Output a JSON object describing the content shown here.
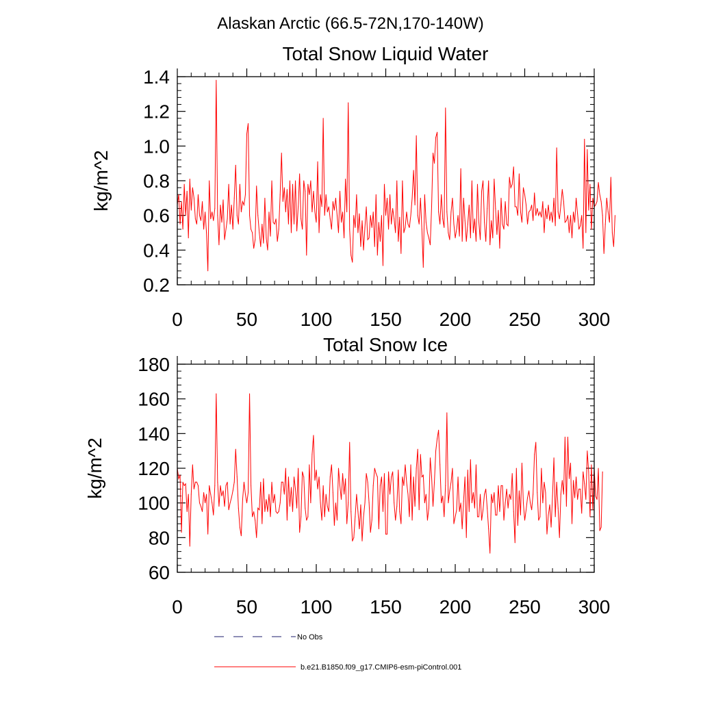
{
  "figure": {
    "title": "Alaskan Arctic (66.5-72N,170-140W)"
  },
  "colors": {
    "background": "#ffffff",
    "axis": "#000000",
    "model_line": "#ff0000",
    "obs_line": "#4b4b8a"
  },
  "legend": {
    "obs_label": "No Obs",
    "model_label": "b.e21.B1850.f09_g17.CMIP6-esm-piControl.001"
  },
  "chart_data": [
    {
      "type": "line",
      "title": "Total Snow Liquid Water",
      "xlabel": "",
      "ylabel": "kg/m^2",
      "xlim": [
        0,
        300
      ],
      "ylim": [
        0.2,
        1.4
      ],
      "xticks": [
        0,
        50,
        100,
        150,
        200,
        250,
        300
      ],
      "xtick_labels": [
        "0",
        "50",
        "100",
        "150",
        "200",
        "250",
        "300"
      ],
      "yticks": [
        0.2,
        0.4,
        0.6,
        0.8,
        1.0,
        1.2,
        1.4
      ],
      "ytick_labels": [
        "0.2",
        "0.4",
        "0.6",
        "0.8",
        "1.0",
        "1.2",
        "1.4"
      ],
      "series": [
        {
          "name": "b.e21.B1850.f09_g17.CMIP6-esm-piControl.001",
          "x_start": 0,
          "x_step": 1,
          "values": [
            0.66,
            0.72,
            0.55,
            0.68,
            0.52,
            0.78,
            0.6,
            0.74,
            0.47,
            0.81,
            0.63,
            0.76,
            0.7,
            0.58,
            0.55,
            0.72,
            0.6,
            0.57,
            0.68,
            0.52,
            0.62,
            0.5,
            0.28,
            0.8,
            0.58,
            0.62,
            0.57,
            0.64,
            1.38,
            0.6,
            0.43,
            0.66,
            0.56,
            0.69,
            0.46,
            0.52,
            0.58,
            0.78,
            0.55,
            0.66,
            0.52,
            0.7,
            0.89,
            0.6,
            0.55,
            0.78,
            0.62,
            0.68,
            0.66,
            0.72,
            1.07,
            1.13,
            0.6,
            0.52,
            0.5,
            0.41,
            0.46,
            0.77,
            0.6,
            0.5,
            0.42,
            0.55,
            0.44,
            0.7,
            0.47,
            0.4,
            0.62,
            0.48,
            0.8,
            0.56,
            0.55,
            0.58,
            0.45,
            0.52,
            0.72,
            0.96,
            0.68,
            0.76,
            0.62,
            0.75,
            0.55,
            0.8,
            0.5,
            0.78,
            0.55,
            0.8,
            0.51,
            0.65,
            0.84,
            0.58,
            0.52,
            0.8,
            0.74,
            0.37,
            0.78,
            0.72,
            0.8,
            0.62,
            0.74,
            0.62,
            0.56,
            0.91,
            0.5,
            0.72,
            0.65,
            1.16,
            0.6,
            0.72,
            0.62,
            0.65,
            0.58,
            0.52,
            0.68,
            0.63,
            0.7,
            0.6,
            0.5,
            0.74,
            0.56,
            0.62,
            0.47,
            0.81,
            0.62,
            1.25,
            0.52,
            0.37,
            0.33,
            0.6,
            0.53,
            0.72,
            0.5,
            0.61,
            0.42,
            0.57,
            0.4,
            0.53,
            0.65,
            0.46,
            0.47,
            0.6,
            0.53,
            0.62,
            0.42,
            0.72,
            0.37,
            0.56,
            0.45,
            0.6,
            0.31,
            0.78,
            0.6,
            0.7,
            0.52,
            0.72,
            0.55,
            0.64,
            0.58,
            0.5,
            0.8,
            0.45,
            0.59,
            0.38,
            0.8,
            0.5,
            0.53,
            0.62,
            0.55,
            0.53,
            0.6,
            0.7,
            0.86,
            0.66,
            1.06,
            0.6,
            0.55,
            0.7,
            0.52,
            0.3,
            0.72,
            0.56,
            0.5,
            0.47,
            0.43,
            0.65,
            0.96,
            0.9,
            1.05,
            1.08,
            0.62,
            0.55,
            0.72,
            0.58,
            0.53,
            1.22,
            0.62,
            0.5,
            0.46,
            0.62,
            0.7,
            0.55,
            0.47,
            0.52,
            0.6,
            0.48,
            0.87,
            0.45,
            0.7,
            0.57,
            0.45,
            0.55,
            0.66,
            0.47,
            0.8,
            0.5,
            0.58,
            0.45,
            0.78,
            0.56,
            0.46,
            0.74,
            0.8,
            0.56,
            0.45,
            0.64,
            0.8,
            0.43,
            0.57,
            0.47,
            0.81,
            0.64,
            0.49,
            0.63,
            0.41,
            0.7,
            0.55,
            0.52,
            0.68,
            0.55,
            0.54,
            0.82,
            0.76,
            0.78,
            0.88,
            0.65,
            0.65,
            0.6,
            0.84,
            0.62,
            0.56,
            0.76,
            0.72,
            0.66,
            0.55,
            0.62,
            0.63,
            0.66,
            0.57,
            0.73,
            0.6,
            0.64,
            0.6,
            0.62,
            0.59,
            0.68,
            0.5,
            0.64,
            0.58,
            0.66,
            0.57,
            0.62,
            0.56,
            0.7,
            0.54,
            0.99,
            0.62,
            0.58,
            0.66,
            0.75,
            0.68,
            0.56,
            0.57,
            0.6,
            0.5,
            0.6,
            0.47,
            0.62,
            0.56,
            0.7,
            0.61,
            0.52,
            0.54,
            0.6,
            0.41,
            1.04,
            0.5,
            0.98,
            0.63,
            0.78,
            0.52,
            0.7,
            0.65,
            0.66,
            0.68,
            0.79,
            0.72,
            0.68,
            0.6,
            0.38,
            0.55,
            0.7,
            0.62,
            0.56,
            0.82,
            0.5,
            0.42,
            0.6
          ]
        }
      ]
    },
    {
      "type": "line",
      "title": "Total Snow Ice",
      "xlabel": "",
      "ylabel": "kg/m^2",
      "xlim": [
        0,
        300
      ],
      "ylim": [
        60,
        180
      ],
      "xticks": [
        0,
        50,
        100,
        150,
        200,
        250,
        300
      ],
      "xtick_labels": [
        "0",
        "50",
        "100",
        "150",
        "200",
        "250",
        "300"
      ],
      "yticks": [
        60,
        80,
        100,
        120,
        140,
        160,
        180
      ],
      "ytick_labels": [
        "60",
        "80",
        "100",
        "120",
        "140",
        "160",
        "180"
      ],
      "series": [
        {
          "name": "b.e21.B1850.f09_g17.CMIP6-esm-piControl.001",
          "x_start": 0,
          "x_step": 1,
          "values": [
            120,
            114,
            116,
            83,
            112,
            110,
            111,
            95,
            105,
            75,
            105,
            122,
            108,
            112,
            112,
            110,
            100,
            98,
            95,
            106,
            100,
            105,
            82,
            110,
            105,
            100,
            93,
            110,
            163,
            112,
            98,
            110,
            104,
            107,
            98,
            110,
            112,
            96,
            100,
            103,
            107,
            112,
            131,
            115,
            97,
            86,
            81,
            102,
            112,
            105,
            100,
            106,
            163,
            110,
            92,
            95,
            90,
            80,
            97,
            96,
            112,
            88,
            114,
            95,
            102,
            95,
            105,
            92,
            112,
            100,
            105,
            95,
            94,
            95,
            100,
            112,
            112,
            105,
            120,
            90,
            115,
            98,
            109,
            95,
            115,
            108,
            97,
            120,
            83,
            92,
            118,
            115,
            97,
            90,
            92,
            122,
            100,
            128,
            139,
            113,
            119,
            108,
            115,
            100,
            90,
            110,
            92,
            105,
            98,
            95,
            115,
            122,
            106,
            87,
            100,
            90,
            120,
            110,
            102,
            117,
            105,
            114,
            88,
            100,
            135,
            95,
            78,
            80,
            92,
            105,
            95,
            85,
            99,
            78,
            92,
            100,
            117,
            112,
            100,
            83,
            90,
            110,
            120,
            117,
            115,
            85,
            110,
            115,
            95,
            117,
            82,
            82,
            118,
            105,
            115,
            118,
            100,
            90,
            98,
            119,
            95,
            88,
            115,
            110,
            122,
            112,
            105,
            92,
            122,
            90,
            115,
            98,
            120,
            131,
            96,
            128,
            115,
            116,
            100,
            105,
            90,
            97,
            126,
            115,
            98,
            112,
            130,
            137,
            142,
            122,
            100,
            104,
            92,
            110,
            152,
            100,
            107,
            112,
            120,
            88,
            92,
            96,
            115,
            95,
            100,
            85,
            101,
            115,
            80,
            119,
            95,
            125,
            100,
            106,
            97,
            122,
            92,
            92,
            105,
            90,
            96,
            105,
            108,
            97,
            85,
            71,
            105,
            100,
            106,
            93,
            93,
            110,
            95,
            110,
            110,
            90,
            100,
            108,
            97,
            105,
            102,
            117,
            95,
            77,
            120,
            87,
            107,
            93,
            123,
            100,
            90,
            96,
            103,
            107,
            100,
            96,
            105,
            128,
            135,
            106,
            90,
            92,
            120,
            100,
            112,
            106,
            82,
            93,
            99,
            86,
            104,
            126,
            92,
            112,
            97,
            80,
            105,
            113,
            105,
            138,
            98,
            138,
            114,
            123,
            88,
            113,
            103,
            115,
            102,
            108,
            108,
            94,
            118,
            111,
            102,
            130,
            118,
            92,
            122,
            96,
            120,
            104,
            102,
            120,
            84,
            86,
            118
          ]
        }
      ]
    }
  ]
}
